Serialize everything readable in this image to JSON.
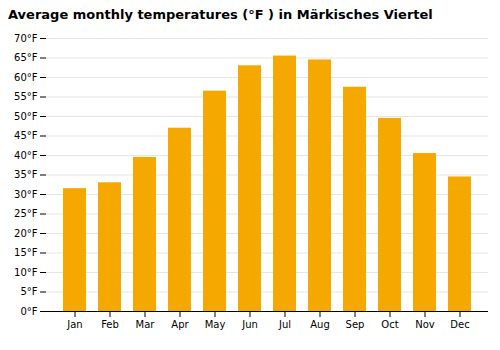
{
  "chart_data": {
    "type": "bar",
    "title": "Average monthly temperatures (°F ) in Märkisches Viertel",
    "categories": [
      "Jan",
      "Feb",
      "Mar",
      "Apr",
      "May",
      "Jun",
      "Jul",
      "Aug",
      "Sep",
      "Oct",
      "Nov",
      "Dec"
    ],
    "values": [
      31.5,
      33.0,
      39.5,
      47.0,
      56.5,
      63.0,
      65.5,
      64.5,
      57.5,
      49.5,
      40.5,
      34.5
    ],
    "color": "#F5A800",
    "ylim": [
      0,
      70
    ],
    "yticks": [
      {
        "value": 0,
        "label": "0°F"
      },
      {
        "value": 5,
        "label": "5°F"
      },
      {
        "value": 10,
        "label": "10°F"
      },
      {
        "value": 15,
        "label": "15°F"
      },
      {
        "value": 20,
        "label": "20°F"
      },
      {
        "value": 25,
        "label": "25°F"
      },
      {
        "value": 30,
        "label": "30°F"
      },
      {
        "value": 35,
        "label": "35°F"
      },
      {
        "value": 40,
        "label": "40°F"
      },
      {
        "value": 45,
        "label": "45°F"
      },
      {
        "value": 50,
        "label": "50°F"
      },
      {
        "value": 55,
        "label": "55°F"
      },
      {
        "value": 60,
        "label": "60°F"
      },
      {
        "value": 65,
        "label": "65°F"
      },
      {
        "value": 70,
        "label": "70°F"
      }
    ],
    "grid": true
  }
}
